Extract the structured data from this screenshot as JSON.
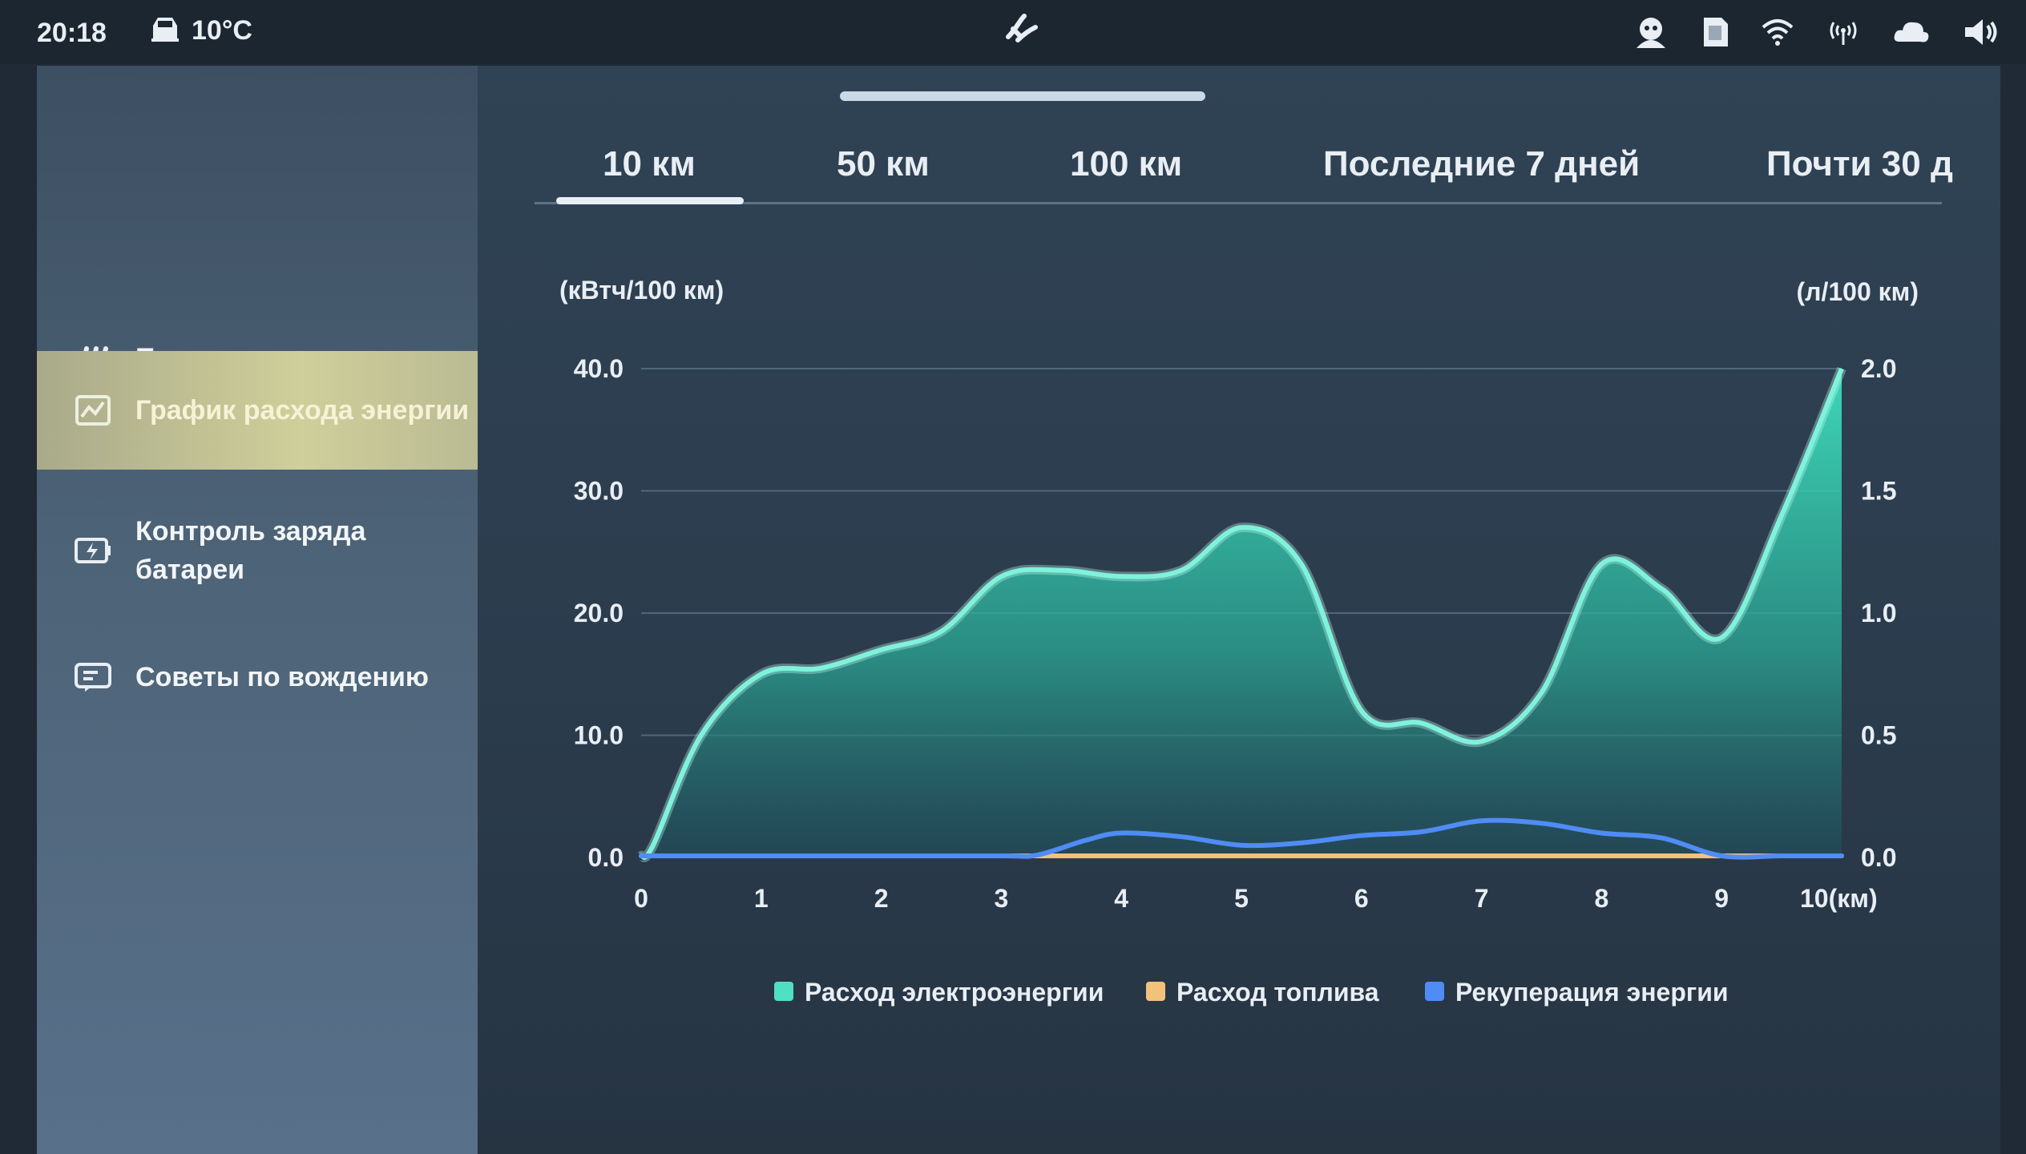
{
  "status_bar": {
    "time": "20:18",
    "temperature": "10°C",
    "icons": [
      "car-icon",
      "fan-icon",
      "assistant-icon",
      "phone-card-icon",
      "wifi-icon",
      "hotspot-icon",
      "cloud-icon",
      "speaker-icon"
    ]
  },
  "sidebar": {
    "items": [
      {
        "label": "Поток энергии",
        "icon": "energy-flow-icon",
        "active": false
      },
      {
        "label": "График расхода энергии",
        "icon": "chart-icon",
        "active": true
      },
      {
        "label": "Контроль заряда батареи",
        "icon": "battery-charge-icon",
        "active": false
      },
      {
        "label": "Советы по вождению",
        "icon": "driving-tips-icon",
        "active": false
      }
    ]
  },
  "tabs": [
    {
      "label": "10 км",
      "active": true
    },
    {
      "label": "50 км",
      "active": false
    },
    {
      "label": "100 км",
      "active": false
    },
    {
      "label": "Последние 7 дней",
      "active": false
    },
    {
      "label": "Почти 30 д",
      "active": false
    }
  ],
  "colors": {
    "electric": "#4fe0c1",
    "fuel": "#f2c27a",
    "regen": "#4f8cf5",
    "active_nav": "#cfcf9a"
  },
  "chart_data": {
    "type": "area",
    "left_unit": "(кВтч/100 км)",
    "right_unit": "(л/100 км)",
    "x": [
      0,
      1,
      2,
      3,
      4,
      5,
      6,
      7,
      8,
      9,
      10
    ],
    "x_tick_labels": [
      "0",
      "1",
      "2",
      "3",
      "4",
      "5",
      "6",
      "7",
      "8",
      "9",
      "10(км)"
    ],
    "y_ticks_left": [
      "40.0",
      "30.0",
      "20.0",
      "10.0",
      "0.0"
    ],
    "y_ticks_right": [
      "2.0",
      "1.5",
      "1.0",
      "0.5",
      "0.0"
    ],
    "ylim_left": [
      0,
      40
    ],
    "ylim_right": [
      0,
      2
    ],
    "grid": true,
    "series": [
      {
        "name": "Расход электроэнергии",
        "axis": "left",
        "x": [
          0,
          0.1,
          0.5,
          1,
          1.5,
          2,
          2.5,
          3,
          3.5,
          4,
          4.5,
          5,
          5.5,
          6,
          6.5,
          7,
          7.5,
          8,
          8.5,
          9,
          9.5,
          10
        ],
        "values": [
          0,
          1,
          10,
          15,
          15.5,
          17,
          18.5,
          23,
          23.5,
          23,
          23.5,
          27,
          24,
          12,
          11,
          9.5,
          13.5,
          24,
          22,
          18,
          28,
          40
        ]
      },
      {
        "name": "Расход топлива",
        "axis": "right",
        "x": [
          0,
          1,
          2,
          3,
          4,
          5,
          6,
          7,
          8,
          9,
          10
        ],
        "values": [
          0,
          0,
          0,
          0,
          0,
          0,
          0,
          0,
          0,
          0,
          0
        ]
      },
      {
        "name": "Рекуперация энергии",
        "axis": "left",
        "x": [
          0,
          1,
          2,
          3,
          3.3,
          3.7,
          4,
          4.5,
          5,
          5.5,
          6,
          6.5,
          7,
          7.5,
          8,
          8.5,
          9,
          9.5,
          10
        ],
        "values": [
          0,
          0,
          0,
          0,
          0.2,
          1.4,
          2,
          1.7,
          1,
          1.2,
          1.8,
          2.1,
          3,
          2.8,
          2,
          1.6,
          0.1,
          0,
          0
        ]
      }
    ],
    "legend_position": "bottom-center"
  }
}
